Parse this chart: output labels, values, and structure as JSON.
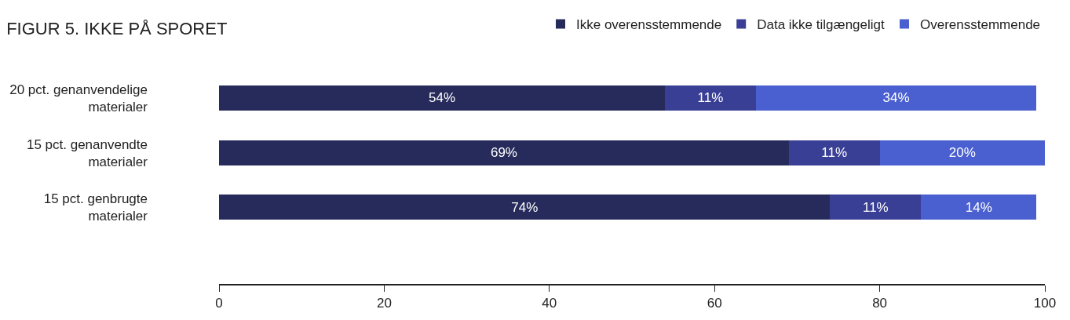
{
  "chart_data": {
    "type": "bar",
    "orientation": "horizontal",
    "stacked": true,
    "title": "FIGUR 5. IKKE PÅ SPORET",
    "categories": [
      "20 pct. genanvendelige materialer",
      "15 pct. genanvendte materialer",
      "15 pct. genbrugte materialer"
    ],
    "series": [
      {
        "name": "Ikke overensstemmende",
        "color": "#272b5c",
        "values": [
          54,
          69,
          74
        ],
        "value_labels": [
          "54%",
          "69%",
          "74%"
        ]
      },
      {
        "name": "Data ikke tilgængeligt",
        "color": "#3a3f96",
        "values": [
          11,
          11,
          11
        ],
        "value_labels": [
          "11%",
          "11%",
          "11%"
        ]
      },
      {
        "name": "Overensstemmende",
        "color": "#4a60d0",
        "values": [
          34,
          20,
          14
        ],
        "value_labels": [
          "34%",
          "20%",
          "14%"
        ]
      }
    ],
    "xlim": [
      0,
      100
    ],
    "xticks": [
      0,
      20,
      40,
      60,
      80,
      100
    ],
    "legend": "top right"
  }
}
